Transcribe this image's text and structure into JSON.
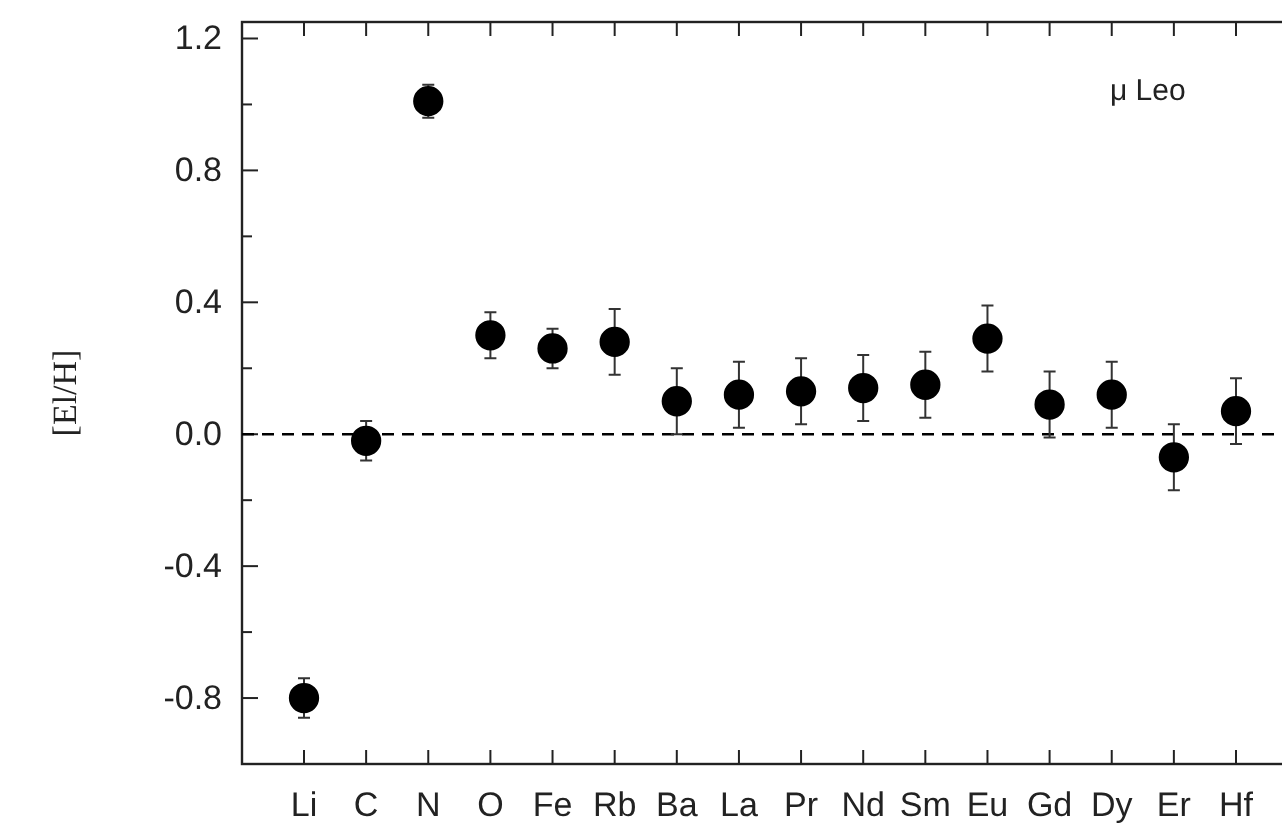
{
  "chart_data": {
    "type": "scatter",
    "ylabel": "[El/H]",
    "annotations": [
      "μ Leo"
    ],
    "categories": [
      "Li",
      "C",
      "N",
      "O",
      "Fe",
      "Rb",
      "Ba",
      "La",
      "Pr",
      "Nd",
      "Sm",
      "Eu",
      "Gd",
      "Dy",
      "Er",
      "Hf"
    ],
    "series": [
      {
        "color": "#000000",
        "values": [
          -0.8,
          -0.02,
          1.01,
          0.3,
          0.26,
          0.28,
          0.1,
          0.12,
          0.13,
          0.14,
          0.15,
          0.29,
          0.09,
          0.12,
          -0.07,
          0.07
        ],
        "errors": [
          0.06,
          0.06,
          0.05,
          0.07,
          0.06,
          0.1,
          0.1,
          0.1,
          0.1,
          0.1,
          0.1,
          0.1,
          0.1,
          0.1,
          0.1,
          0.1
        ]
      }
    ],
    "ylim": [
      -1.0,
      1.25
    ],
    "yticks": [
      {
        "value": -1.0,
        "label": null
      },
      {
        "value": -0.8,
        "label": "-0.8"
      },
      {
        "value": -0.6,
        "label": null
      },
      {
        "value": -0.4,
        "label": "-0.4"
      },
      {
        "value": -0.2,
        "label": null
      },
      {
        "value": 0.0,
        "label": "0.0"
      },
      {
        "value": 0.2,
        "label": null
      },
      {
        "value": 0.4,
        "label": "0.4"
      },
      {
        "value": 0.6,
        "label": null
      },
      {
        "value": 0.8,
        "label": "0.8"
      },
      {
        "value": 1.0,
        "label": null
      },
      {
        "value": 1.2,
        "label": "1.2"
      }
    ],
    "ref_lines": [
      {
        "axis": "y",
        "value": 0,
        "line_style": "dashed",
        "color": "#000000"
      }
    ],
    "marker": "circle"
  }
}
